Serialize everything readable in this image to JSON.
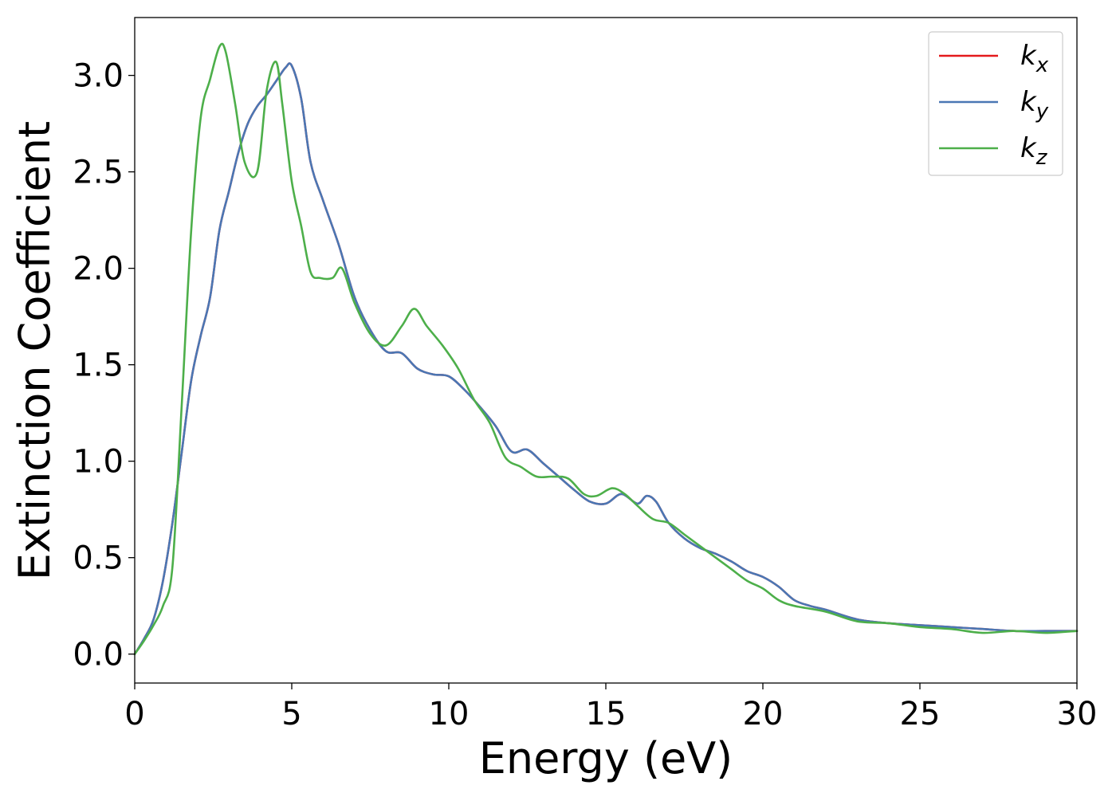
{
  "chart_data": {
    "type": "line",
    "xlabel": "Energy (eV)",
    "ylabel": "Extinction Coefficient",
    "xlim": [
      0,
      30
    ],
    "ylim": [
      -0.15,
      3.3
    ],
    "xticks": [
      0,
      5,
      10,
      15,
      20,
      25,
      30
    ],
    "xtick_labels": [
      "0",
      "5",
      "10",
      "15",
      "20",
      "25",
      "30"
    ],
    "yticks": [
      0.0,
      0.5,
      1.0,
      1.5,
      2.0,
      2.5,
      3.0
    ],
    "ytick_labels": [
      "0.0",
      "0.5",
      "1.0",
      "1.5",
      "2.0",
      "2.5",
      "3.0"
    ],
    "grid": false,
    "legend_position": "top-right",
    "series": [
      {
        "name": "k_x",
        "label_base": "k",
        "label_sub": "x",
        "color": "#e41a1c",
        "x": [
          0,
          0.3,
          0.6,
          0.9,
          1.2,
          1.5,
          1.8,
          2.1,
          2.4,
          2.7,
          3.0,
          3.3,
          3.6,
          3.9,
          4.2,
          4.5,
          4.8,
          5.0,
          5.3,
          5.6,
          6.0,
          6.5,
          7.0,
          7.5,
          8.0,
          8.5,
          9.0,
          9.5,
          10.0,
          10.5,
          11.0,
          11.5,
          12.0,
          12.5,
          13.0,
          13.5,
          14.0,
          14.5,
          15.0,
          15.5,
          16.0,
          16.3,
          16.6,
          17.0,
          17.5,
          18.0,
          18.5,
          19.0,
          19.5,
          20.0,
          20.5,
          21.0,
          21.5,
          22.0,
          23.0,
          24.0,
          25.0,
          26.0,
          27.0,
          28.0,
          29.0,
          30.0
        ],
        "y": [
          0.0,
          0.08,
          0.18,
          0.38,
          0.68,
          1.05,
          1.42,
          1.65,
          1.85,
          2.2,
          2.4,
          2.6,
          2.75,
          2.84,
          2.9,
          2.97,
          3.04,
          3.05,
          2.88,
          2.55,
          2.35,
          2.12,
          1.85,
          1.68,
          1.57,
          1.56,
          1.48,
          1.45,
          1.44,
          1.37,
          1.28,
          1.18,
          1.05,
          1.06,
          0.99,
          0.92,
          0.85,
          0.79,
          0.78,
          0.83,
          0.78,
          0.82,
          0.79,
          0.68,
          0.6,
          0.55,
          0.52,
          0.48,
          0.43,
          0.4,
          0.35,
          0.28,
          0.25,
          0.23,
          0.18,
          0.16,
          0.15,
          0.14,
          0.13,
          0.12,
          0.12,
          0.12
        ]
      },
      {
        "name": "k_y",
        "label_base": "k",
        "label_sub": "y",
        "color": "#4a77b4",
        "x": [
          0,
          0.3,
          0.6,
          0.9,
          1.2,
          1.5,
          1.8,
          2.1,
          2.4,
          2.7,
          3.0,
          3.3,
          3.6,
          3.9,
          4.2,
          4.5,
          4.8,
          5.0,
          5.3,
          5.6,
          6.0,
          6.5,
          7.0,
          7.5,
          8.0,
          8.5,
          9.0,
          9.5,
          10.0,
          10.5,
          11.0,
          11.5,
          12.0,
          12.5,
          13.0,
          13.5,
          14.0,
          14.5,
          15.0,
          15.5,
          16.0,
          16.3,
          16.6,
          17.0,
          17.5,
          18.0,
          18.5,
          19.0,
          19.5,
          20.0,
          20.5,
          21.0,
          21.5,
          22.0,
          23.0,
          24.0,
          25.0,
          26.0,
          27.0,
          28.0,
          29.0,
          30.0
        ],
        "y": [
          0.0,
          0.08,
          0.18,
          0.38,
          0.68,
          1.05,
          1.42,
          1.65,
          1.85,
          2.2,
          2.4,
          2.6,
          2.75,
          2.84,
          2.9,
          2.97,
          3.04,
          3.05,
          2.88,
          2.55,
          2.35,
          2.12,
          1.85,
          1.68,
          1.57,
          1.56,
          1.48,
          1.45,
          1.44,
          1.37,
          1.28,
          1.18,
          1.05,
          1.06,
          0.99,
          0.92,
          0.85,
          0.79,
          0.78,
          0.83,
          0.78,
          0.82,
          0.79,
          0.68,
          0.6,
          0.55,
          0.52,
          0.48,
          0.43,
          0.4,
          0.35,
          0.28,
          0.25,
          0.23,
          0.18,
          0.16,
          0.15,
          0.14,
          0.13,
          0.12,
          0.12,
          0.12
        ]
      },
      {
        "name": "k_z",
        "label_base": "k",
        "label_sub": "z",
        "color": "#4daf4a",
        "x": [
          0,
          0.3,
          0.6,
          0.9,
          1.2,
          1.5,
          1.8,
          2.1,
          2.4,
          2.7,
          2.9,
          3.2,
          3.5,
          3.9,
          4.2,
          4.5,
          4.7,
          5.0,
          5.3,
          5.6,
          5.9,
          6.3,
          6.6,
          7.0,
          7.5,
          8.0,
          8.5,
          8.9,
          9.3,
          9.8,
          10.3,
          10.8,
          11.3,
          11.8,
          12.3,
          12.8,
          13.3,
          13.8,
          14.3,
          14.7,
          15.2,
          15.6,
          16.0,
          16.5,
          17.0,
          17.5,
          18.0,
          18.5,
          19.0,
          19.5,
          20.0,
          20.5,
          21.0,
          22.0,
          23.0,
          24.0,
          25.0,
          26.0,
          27.0,
          28.0,
          29.0,
          30.0
        ],
        "y": [
          0.0,
          0.07,
          0.15,
          0.25,
          0.45,
          1.3,
          2.2,
          2.78,
          2.98,
          3.15,
          3.12,
          2.85,
          2.55,
          2.5,
          2.92,
          3.07,
          2.85,
          2.45,
          2.22,
          1.98,
          1.95,
          1.95,
          2.0,
          1.82,
          1.66,
          1.6,
          1.7,
          1.79,
          1.7,
          1.6,
          1.48,
          1.32,
          1.2,
          1.02,
          0.97,
          0.92,
          0.92,
          0.91,
          0.83,
          0.82,
          0.86,
          0.83,
          0.77,
          0.7,
          0.68,
          0.62,
          0.56,
          0.5,
          0.44,
          0.38,
          0.34,
          0.28,
          0.25,
          0.22,
          0.17,
          0.16,
          0.14,
          0.13,
          0.11,
          0.12,
          0.11,
          0.12
        ]
      }
    ]
  }
}
